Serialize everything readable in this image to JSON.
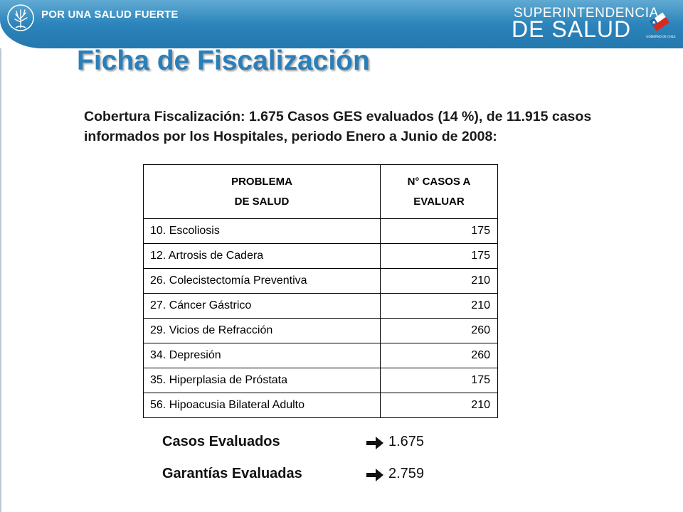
{
  "header": {
    "slogan": "POR UNA SALUD FUERTE",
    "brand_line1": "SUPERINTENDENCIA",
    "brand_line2": "DE SALUD",
    "gov_caption": "GOBIERNO DE CHILE",
    "icons": [
      "tree-logo-icon",
      "chile-government-logo-icon"
    ],
    "colors": {
      "header_blue": "#2b83b9",
      "title_blue": "#2a7fba"
    }
  },
  "title": "Ficha de Fiscalización",
  "subtitle": "Cobertura Fiscalización: 1.675 Casos GES evaluados (14 %), de 11.915 casos informados por los Hospitales, periodo Enero a Junio de 2008:",
  "table": {
    "headers": [
      "PROBLEMA DE SALUD",
      "N° CASOS A EVALUAR"
    ],
    "header_lines": [
      [
        "PROBLEMA",
        "DE SALUD"
      ],
      [
        "N° CASOS A",
        "EVALUAR"
      ]
    ],
    "rows": [
      {
        "problema": "10. Escoliosis",
        "casos": "175"
      },
      {
        "problema": "12. Artrosis de Cadera",
        "casos": "175"
      },
      {
        "problema": "26. Colecistectomía Preventiva",
        "casos": "210"
      },
      {
        "problema": "27. Cáncer Gástrico",
        "casos": "210"
      },
      {
        "problema": "29. Vicios de Refracción",
        "casos": "260"
      },
      {
        "problema": "34. Depresión",
        "casos": "260"
      },
      {
        "problema": "35. Hiperplasia de Próstata",
        "casos": "175"
      },
      {
        "problema": "56. Hipoacusia Bilateral Adulto",
        "casos": "210"
      }
    ]
  },
  "summary": [
    {
      "label": "Casos Evaluados",
      "value": "1.675",
      "icon": "right-arrow-icon"
    },
    {
      "label": "Garantías Evaluadas",
      "value": "2.759",
      "icon": "right-arrow-icon"
    }
  ]
}
